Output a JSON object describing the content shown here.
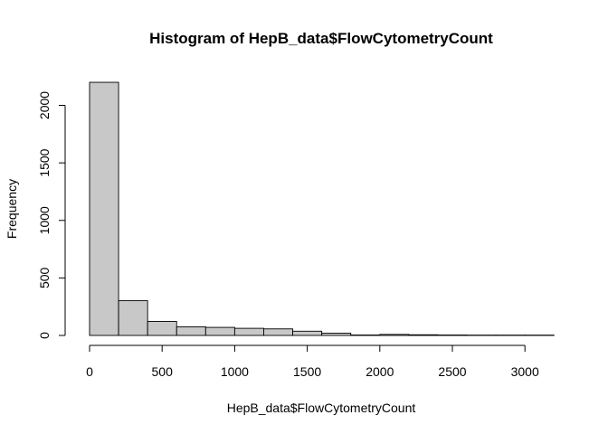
{
  "chart_data": {
    "type": "bar",
    "title": "Histogram of HepB_data$FlowCytometryCount",
    "xlabel": "HepB_data$FlowCytometryCount",
    "ylabel": "Frequency",
    "bins": [
      {
        "start": 0,
        "end": 200,
        "count": 2200
      },
      {
        "start": 200,
        "end": 400,
        "count": 302
      },
      {
        "start": 400,
        "end": 600,
        "count": 122
      },
      {
        "start": 600,
        "end": 800,
        "count": 75
      },
      {
        "start": 800,
        "end": 1000,
        "count": 70
      },
      {
        "start": 1000,
        "end": 1200,
        "count": 62
      },
      {
        "start": 1200,
        "end": 1400,
        "count": 57
      },
      {
        "start": 1400,
        "end": 1600,
        "count": 37
      },
      {
        "start": 1600,
        "end": 1800,
        "count": 20
      },
      {
        "start": 1800,
        "end": 2000,
        "count": 4
      },
      {
        "start": 2000,
        "end": 2200,
        "count": 9
      },
      {
        "start": 2200,
        "end": 2400,
        "count": 6
      },
      {
        "start": 2400,
        "end": 2600,
        "count": 4
      },
      {
        "start": 2600,
        "end": 2800,
        "count": 3
      },
      {
        "start": 2800,
        "end": 3000,
        "count": 3
      },
      {
        "start": 3000,
        "end": 3200,
        "count": 3
      }
    ],
    "xticks": [
      0,
      500,
      1000,
      1500,
      2000,
      2500,
      3000
    ],
    "yticks": [
      0,
      500,
      1000,
      1500,
      2000
    ],
    "xlim": [
      0,
      3200
    ],
    "ylim": [
      0,
      2200
    ],
    "bar_fill": "#c8c8c8",
    "bar_stroke": "#000000",
    "grid": false
  }
}
